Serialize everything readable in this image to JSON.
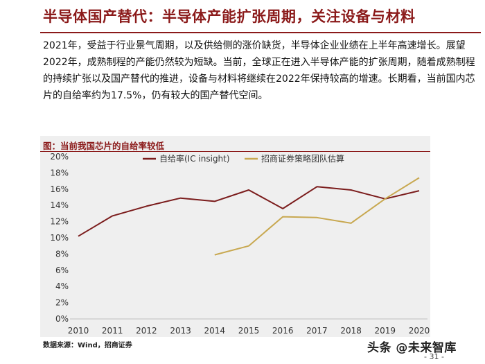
{
  "header": {
    "title": "半导体国产替代：半导体产能扩张周期，关注设备与材料"
  },
  "body": {
    "paragraph": "2021年，受益于行业景气周期，以及供给侧的涨价缺货，半导体企业业绩在上半年高速增长。展望2022年，成熟制程的产能仍然较为短缺。当前，全球正在进入半导体产能的扩张周期，随着成熟制程的持续扩张以及国产替代的推进，设备与材料将继续在2022年保持较高的增速。长期看，当前国内芯片的自给率约为17.5%，仍有较大的国产替代空间。"
  },
  "footer": {
    "source": "数据来源：Wind，招商证券",
    "watermark": "头条 @未来智库",
    "page": "- 31 -"
  },
  "colors": {
    "brand": "#8b1a1a",
    "series1": "#7b1c1c",
    "series2": "#c8a850"
  },
  "chart_data": {
    "type": "line",
    "title": "图：当前我国芯片的自给率较低",
    "xlabel": "",
    "ylabel": "",
    "x": [
      "2010",
      "2011",
      "2012",
      "2013",
      "2014",
      "2015",
      "2016",
      "2017",
      "2018",
      "2019",
      "2020"
    ],
    "ylim": [
      0,
      20
    ],
    "yticks": [
      "0%",
      "2%",
      "4%",
      "6%",
      "8%",
      "10%",
      "12%",
      "14%",
      "16%",
      "18%",
      "20%"
    ],
    "grid": false,
    "legend_position": "top",
    "series": [
      {
        "name": "自给率(IC insight)",
        "color": "#7b1c1c",
        "values": [
          10.2,
          12.7,
          13.9,
          14.9,
          14.5,
          15.9,
          13.6,
          16.3,
          15.9,
          14.8,
          15.8
        ]
      },
      {
        "name": "招商证券策略团队估算",
        "color": "#c8a850",
        "values": [
          null,
          null,
          null,
          null,
          7.9,
          9.0,
          12.6,
          12.5,
          11.8,
          14.8,
          17.4
        ]
      }
    ]
  }
}
